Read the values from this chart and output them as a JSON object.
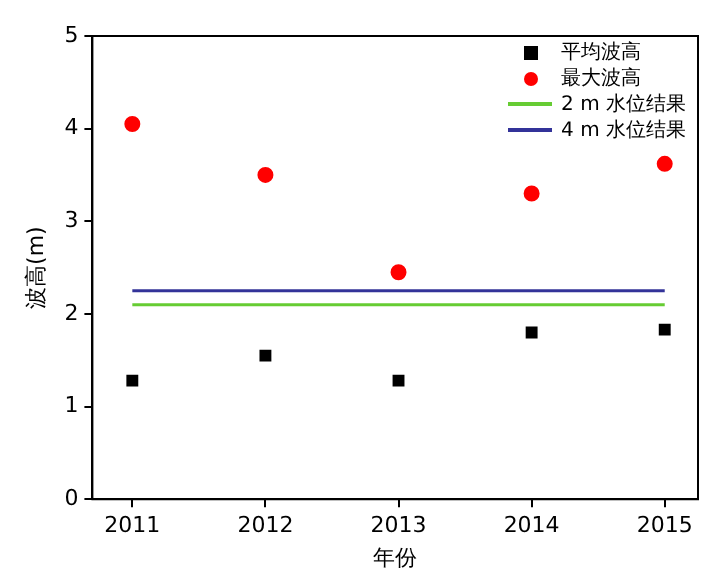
{
  "chart_data": {
    "type": "scatter",
    "xlabel": "年份",
    "ylabel": "波高(m)",
    "xlim": [
      2010.7,
      2015.25
    ],
    "xticks": [
      2011,
      2012,
      2013,
      2014,
      2015
    ],
    "ylim": [
      0,
      5
    ],
    "yticks": [
      0,
      1,
      2,
      3,
      4,
      5
    ],
    "grid": false,
    "legend": "top right",
    "series": [
      {
        "name": "平均波高",
        "marker": "square",
        "color": "#000000",
        "x": [
          2011,
          2012,
          2013,
          2014,
          2015
        ],
        "values": [
          1.28,
          1.55,
          1.28,
          1.8,
          1.83
        ]
      },
      {
        "name": "最大波高",
        "marker": "circle",
        "color": "#ff0000",
        "x": [
          2011,
          2012,
          2013,
          2014,
          2015
        ],
        "values": [
          4.05,
          3.5,
          2.45,
          3.3,
          3.62
        ]
      },
      {
        "name": "2 m 水位结果",
        "type": "line",
        "marker": "none",
        "color": "#66cc33",
        "x": [
          2011,
          2015
        ],
        "values": [
          2.1,
          2.1
        ]
      },
      {
        "name": "4 m 水位结果",
        "type": "line",
        "marker": "none",
        "color": "#333399",
        "x": [
          2011,
          2015
        ],
        "values": [
          2.25,
          2.25
        ]
      }
    ]
  }
}
